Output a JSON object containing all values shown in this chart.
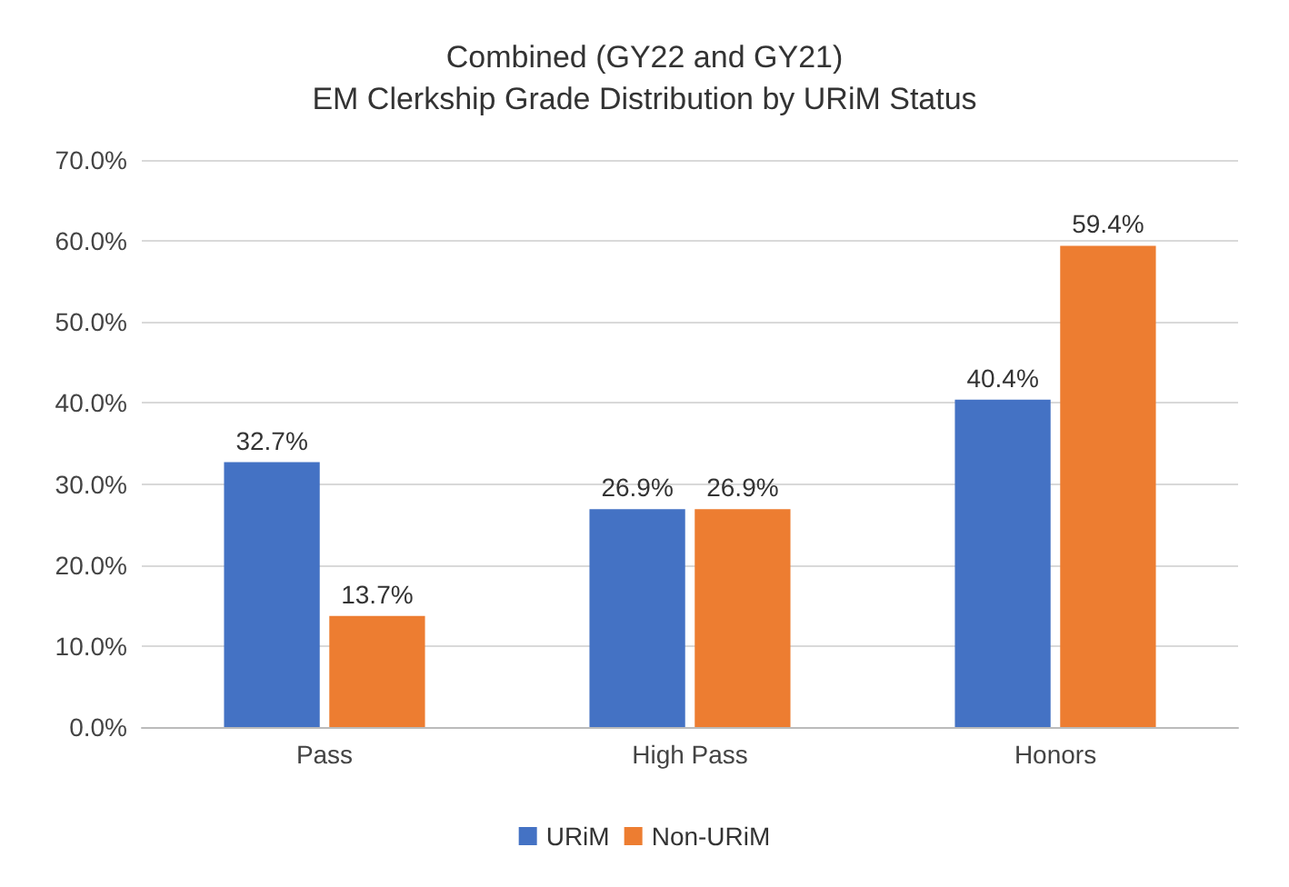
{
  "chart_data": {
    "type": "bar",
    "title": "Combined (GY22 and GY21)",
    "subtitle": "EM Clerkship Grade Distribution by URiM Status",
    "categories": [
      "Pass",
      "High Pass",
      "Honors"
    ],
    "series": [
      {
        "name": "URiM",
        "color": "#4472c4",
        "values": [
          32.7,
          26.9,
          40.4
        ],
        "value_labels": [
          "32.7%",
          "26.9%",
          "40.4%"
        ]
      },
      {
        "name": "Non-URiM",
        "color": "#ed7d31",
        "values": [
          13.7,
          26.9,
          59.4
        ],
        "value_labels": [
          "13.7%",
          "26.9%",
          "59.4%"
        ]
      }
    ],
    "ylim": [
      0,
      70
    ],
    "yticks": [
      {
        "value": 0,
        "label": "0.0%"
      },
      {
        "value": 10,
        "label": "10.0%"
      },
      {
        "value": 20,
        "label": "20.0%"
      },
      {
        "value": 30,
        "label": "30.0%"
      },
      {
        "value": 40,
        "label": "40.0%"
      },
      {
        "value": 50,
        "label": "50.0%"
      },
      {
        "value": 60,
        "label": "60.0%"
      },
      {
        "value": 70,
        "label": "70.0%"
      }
    ],
    "grid": "y",
    "legend": "bottom"
  }
}
